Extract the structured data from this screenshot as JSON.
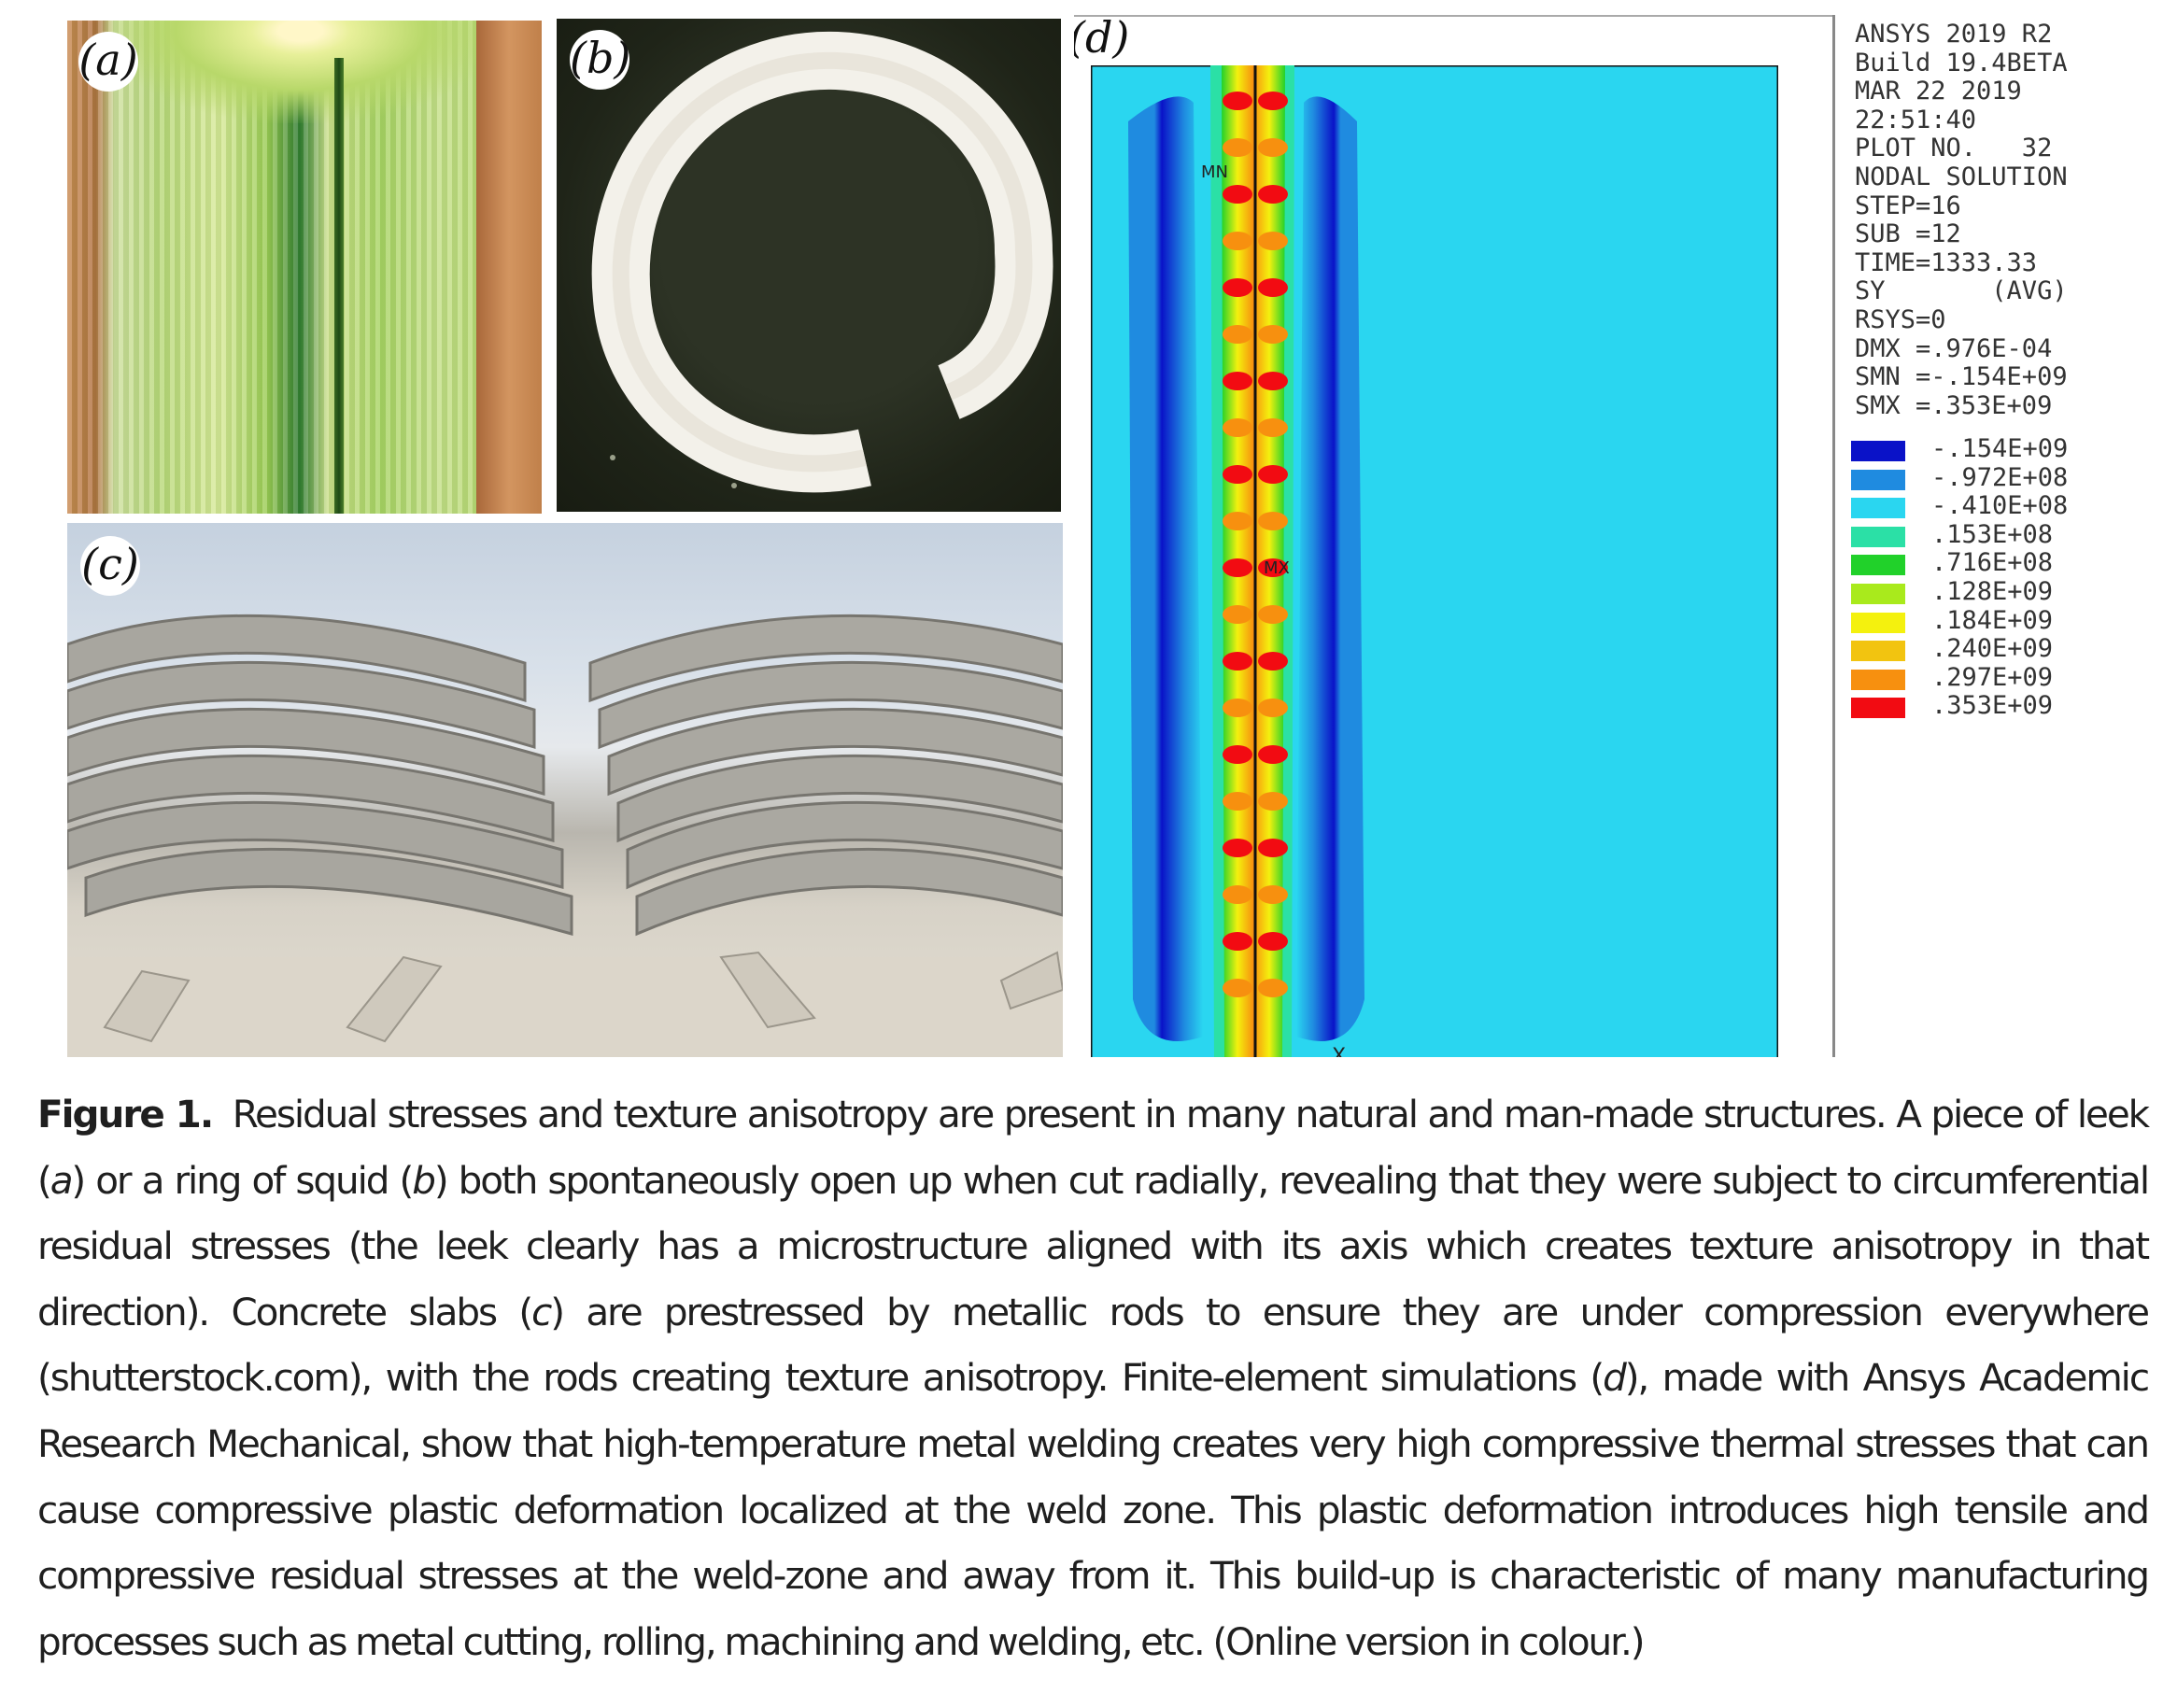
{
  "panels": {
    "a": {
      "label": "(a)"
    },
    "b": {
      "label": "(b)"
    },
    "c": {
      "label": "(c)"
    },
    "d": {
      "label": "(d)"
    }
  },
  "ansys": {
    "info_lines": [
      "ANSYS 2019 R2",
      "Build 19.4BETA",
      "MAR 22 2019",
      "22:51:40",
      "PLOT NO.   32",
      "NODAL SOLUTION",
      "STEP=16",
      "SUB =12",
      "TIME=1333.33",
      "SY       (AVG)",
      "RSYS=0",
      "DMX =.976E-04",
      "SMN =-.154E+09",
      "SMX =.353E+09"
    ],
    "legend": [
      {
        "value": "-.154E+09",
        "color": "#0a12c8"
      },
      {
        "value": "-.972E+08",
        "color": "#1f8be0"
      },
      {
        "value": "-.410E+08",
        "color": "#2ad6f0"
      },
      {
        "value": ".153E+08",
        "color": "#2be0a6"
      },
      {
        "value": ".716E+08",
        "color": "#21d12a"
      },
      {
        "value": ".128E+09",
        "color": "#a9ea1c"
      },
      {
        "value": ".184E+09",
        "color": "#f4f10e"
      },
      {
        "value": ".240E+09",
        "color": "#f2c410"
      },
      {
        "value": ".297E+09",
        "color": "#f7900f"
      },
      {
        "value": ".353E+09",
        "color": "#f20b12"
      }
    ],
    "markers": {
      "mn": "MN",
      "mx": "MX",
      "axis_x": "X"
    }
  },
  "caption": {
    "label": "Figure 1.",
    "segments": [
      {
        "t": " Residual stresses and texture anisotropy are present in many natural and man-made structures. A piece of leek ("
      },
      {
        "t": "a",
        "i": true
      },
      {
        "t": ") or a ring of squid ("
      },
      {
        "t": "b",
        "i": true
      },
      {
        "t": ") both spontaneously open up when cut radially, revealing that they were subject to circumferential residual stresses (the leek clearly has a microstructure aligned with its axis which creates texture anisotropy in that direction). Concrete slabs ("
      },
      {
        "t": "c",
        "i": true
      },
      {
        "t": ") are prestressed by metallic rods to ensure they are under compression everywhere (shutterstock.com), with the rods creating texture anisotropy. Finite-element simulations ("
      },
      {
        "t": "d",
        "i": true
      },
      {
        "t": "), made with Ansys Academic Research Mechanical, show that high-temperature metal welding creates very high compressive thermal stresses that can cause compressive plastic deformation localized at the weld zone. This plastic deformation introduces high tensile and compressive residual stresses at the weld-zone and away from it. This build-up is characteristic of many manufacturing processes such as metal cutting, rolling, machining and welding, etc. (Online version in colour.)"
      }
    ]
  }
}
